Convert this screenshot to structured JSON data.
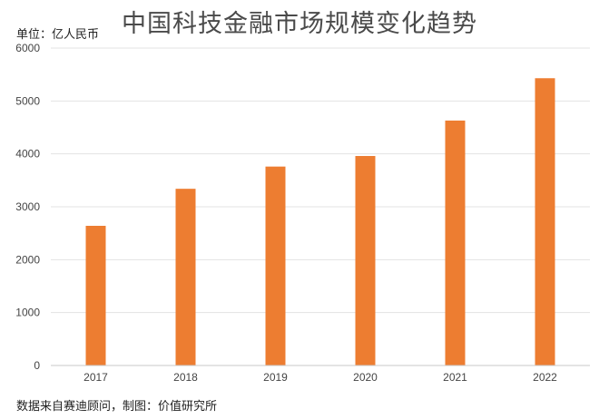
{
  "title": "中国科技金融市场规模变化趋势",
  "unit_label": "单位：亿人民币",
  "source_note": "数据来自赛迪顾问，制图：价值研究所",
  "colors": {
    "bar": "#ED7D31",
    "grid": "#E3E3E3",
    "axis": "#C8C8C8"
  },
  "chart_data": {
    "type": "bar",
    "title": "中国科技金融市场规模变化趋势",
    "ylabel": "单位：亿人民币",
    "xlabel": "",
    "categories": [
      "2017",
      "2018",
      "2019",
      "2020",
      "2021",
      "2022"
    ],
    "values": [
      2640,
      3340,
      3760,
      3960,
      4630,
      5430
    ],
    "ylim": [
      0,
      6000
    ],
    "yticks": [
      0,
      1000,
      2000,
      3000,
      4000,
      5000,
      6000
    ],
    "grid": true,
    "legend": "none"
  }
}
